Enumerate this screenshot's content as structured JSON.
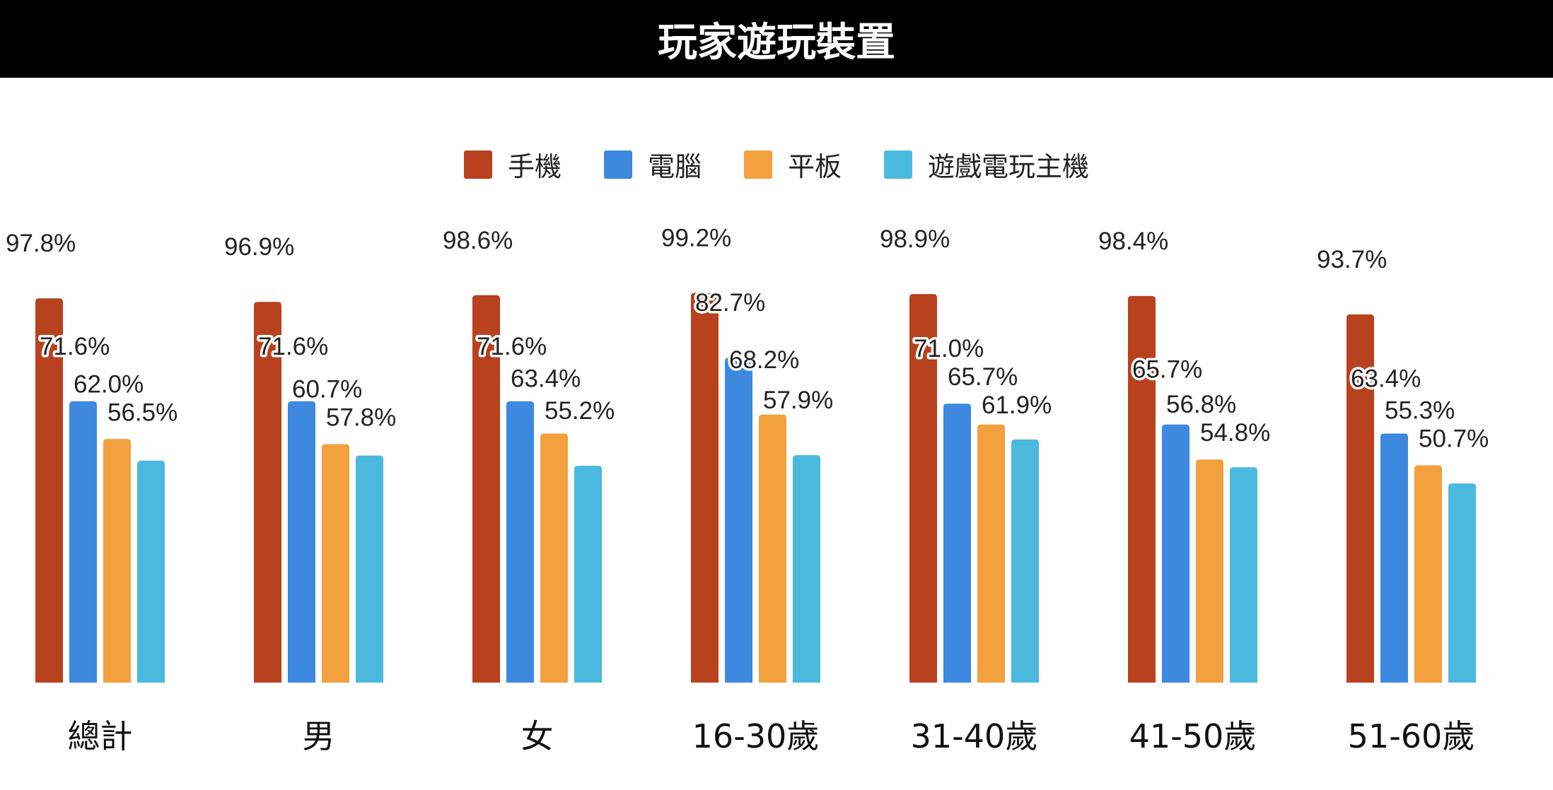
{
  "chart_data": {
    "type": "bar",
    "title": "玩家遊玩裝置",
    "categories": [
      "總計",
      "男",
      "女",
      "16-30歲",
      "31-40歲",
      "41-50歲",
      "51-60歲"
    ],
    "series": [
      {
        "name": "手機",
        "color": "#B8411E",
        "values": [
          97.8,
          96.9,
          98.6,
          99.2,
          98.9,
          98.4,
          93.7
        ]
      },
      {
        "name": "電腦",
        "color": "#3D89E0",
        "values": [
          71.6,
          71.6,
          71.6,
          82.7,
          71.0,
          65.7,
          63.4
        ]
      },
      {
        "name": "平板",
        "color": "#F3A03E",
        "values": [
          62.0,
          60.7,
          63.4,
          68.2,
          65.7,
          56.8,
          55.3
        ]
      },
      {
        "name": "遊戲電玩主機",
        "color": "#4BB9DD",
        "values": [
          56.5,
          57.8,
          55.2,
          57.9,
          61.9,
          54.8,
          50.7
        ]
      }
    ],
    "value_suffix": "%",
    "xlabel": "",
    "ylabel": "",
    "ylim": [
      0,
      100
    ],
    "grid": false,
    "legend_position": "top-center"
  }
}
